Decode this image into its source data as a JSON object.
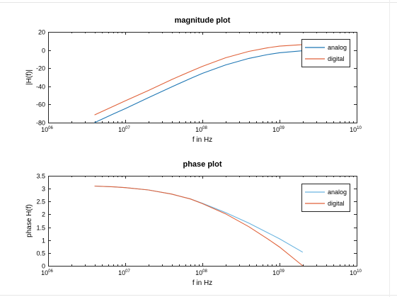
{
  "chart_data": [
    {
      "type": "line",
      "title": "magnitude plot",
      "xlabel": "f in Hz",
      "ylabel": "|H(f)|",
      "xscale": "log",
      "xlim": [
        1000000,
        10000000000
      ],
      "ylim": [
        -80,
        20
      ],
      "xticks": [
        {
          "base": "10",
          "exp": "06"
        },
        {
          "base": "10",
          "exp": "07"
        },
        {
          "base": "10",
          "exp": "08"
        },
        {
          "base": "10",
          "exp": "09"
        },
        {
          "base": "10",
          "exp": "10"
        }
      ],
      "yticks": [
        "20",
        "0",
        "-20",
        "-40",
        "-60",
        "-80"
      ],
      "ytick_values": [
        20,
        0,
        -20,
        -40,
        -60,
        -80
      ],
      "grid": false,
      "legend": "top-right",
      "series": [
        {
          "name": "analog",
          "color": "#1f77b4",
          "x": [
            4000000,
            7000000,
            10000000,
            20000000,
            40000000,
            70000000,
            100000000,
            200000000,
            400000000,
            700000000,
            1000000000,
            2000000000
          ],
          "y": [
            -80,
            -70.5,
            -64.5,
            -52.5,
            -40.6,
            -31.3,
            -25.7,
            -16.4,
            -9.2,
            -5.0,
            -3.0,
            -0.8
          ]
        },
        {
          "name": "digital",
          "color": "#e0623a",
          "x": [
            4000000,
            7000000,
            10000000,
            20000000,
            40000000,
            70000000,
            100000000,
            200000000,
            400000000,
            700000000,
            1000000000,
            2000000000
          ],
          "y": [
            -71.5,
            -62,
            -56,
            -44.5,
            -32.5,
            -23.5,
            -18,
            -8.5,
            -1.5,
            2.5,
            4.3,
            6.0
          ]
        }
      ]
    },
    {
      "type": "line",
      "title": "phase plot",
      "xlabel": "f in Hz",
      "ylabel": "phase H(f)",
      "xscale": "log",
      "xlim": [
        1000000,
        10000000000
      ],
      "ylim": [
        0,
        3.5
      ],
      "xticks": [
        {
          "base": "10",
          "exp": "06"
        },
        {
          "base": "10",
          "exp": "07"
        },
        {
          "base": "10",
          "exp": "08"
        },
        {
          "base": "10",
          "exp": "09"
        },
        {
          "base": "10",
          "exp": "10"
        }
      ],
      "yticks": [
        "3.5",
        "3",
        "2.5",
        "2",
        "1.5",
        "1",
        "0.5",
        "0"
      ],
      "ytick_values": [
        3.5,
        3,
        2.5,
        2,
        1.5,
        1,
        0.5,
        0
      ],
      "grid": false,
      "legend": "top-right",
      "series": [
        {
          "name": "analog",
          "color": "#6ab4e0",
          "x": [
            4000000,
            7000000,
            10000000,
            20000000,
            40000000,
            70000000,
            100000000,
            200000000,
            400000000,
            700000000,
            1000000000,
            2000000000
          ],
          "y": [
            3.1,
            3.07,
            3.04,
            2.95,
            2.79,
            2.6,
            2.43,
            2.07,
            1.66,
            1.29,
            1.05,
            0.53
          ]
        },
        {
          "name": "digital",
          "color": "#e0623a",
          "x": [
            4000000,
            7000000,
            10000000,
            20000000,
            40000000,
            70000000,
            100000000,
            200000000,
            400000000,
            700000000,
            1000000000,
            2000000000
          ],
          "y": [
            3.1,
            3.07,
            3.04,
            2.95,
            2.79,
            2.6,
            2.42,
            2.02,
            1.52,
            1.05,
            0.73,
            0.0
          ]
        }
      ]
    }
  ]
}
